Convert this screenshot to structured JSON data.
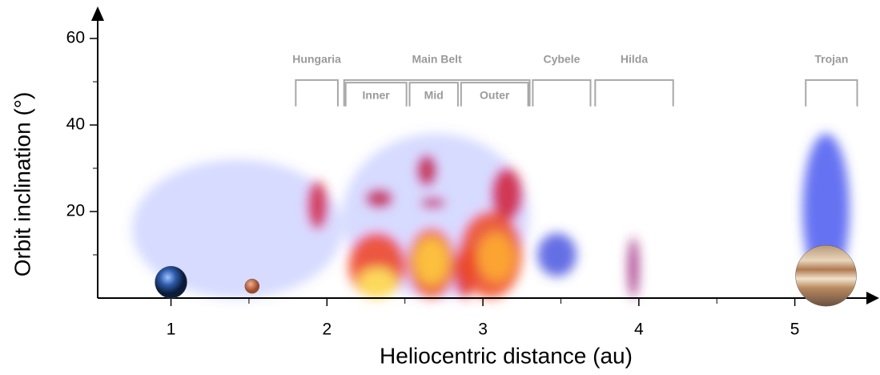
{
  "chart_data": {
    "type": "density",
    "x_label": "Heliocentric distance (au)",
    "y_label": "Orbit inclination (°)",
    "xlim": [
      0.53,
      5.5
    ],
    "ylim": [
      0,
      66
    ],
    "xticks": [
      1,
      2,
      3,
      4,
      5
    ],
    "xminor": [
      1.5,
      2.5,
      3.5,
      4.5
    ],
    "yticks": [
      20,
      40,
      60
    ],
    "yminor": [
      10,
      30,
      50
    ],
    "clusters": [
      {
        "x": [
          0.75,
          2.1
        ],
        "y": [
          0,
          32
        ],
        "color": "#5a6cff"
      },
      {
        "x": [
          2.1,
          3.3
        ],
        "y": [
          0,
          38
        ],
        "color": "#5a6cff"
      },
      {
        "x": [
          1.88,
          2.0
        ],
        "y": [
          16,
          27
        ],
        "color": "#d0203a"
      },
      {
        "x": [
          2.25,
          2.42
        ],
        "y": [
          21,
          25
        ],
        "color": "#c0203a"
      },
      {
        "x": [
          2.14,
          2.5
        ],
        "y": [
          0,
          15
        ],
        "color": "#f04020"
      },
      {
        "x": [
          2.2,
          2.45
        ],
        "y": [
          0,
          7
        ],
        "color": "#fff060"
      },
      {
        "x": [
          2.52,
          2.82
        ],
        "y": [
          0,
          16
        ],
        "color": "#f05020"
      },
      {
        "x": [
          2.56,
          2.78
        ],
        "y": [
          3,
          14
        ],
        "color": "#ffd040"
      },
      {
        "x": [
          2.58,
          2.7
        ],
        "y": [
          26,
          33
        ],
        "color": "#c01a3a"
      },
      {
        "x": [
          2.6,
          2.76
        ],
        "y": [
          21,
          23
        ],
        "color": "#c01a3a"
      },
      {
        "x": [
          2.82,
          2.95
        ],
        "y": [
          0,
          12
        ],
        "color": "#e02a2a"
      },
      {
        "x": [
          2.85,
          3.25
        ],
        "y": [
          0,
          20
        ],
        "color": "#f04a20"
      },
      {
        "x": [
          2.97,
          3.2
        ],
        "y": [
          4,
          15
        ],
        "color": "#ffb030"
      },
      {
        "x": [
          3.06,
          3.25
        ],
        "y": [
          18,
          30
        ],
        "color": "#d01a35"
      },
      {
        "x": [
          3.35,
          3.6
        ],
        "y": [
          5,
          15
        ],
        "color": "#4a55e0"
      },
      {
        "x": [
          3.93,
          4.0
        ],
        "y": [
          0,
          14
        ],
        "color": "#a02a80"
      },
      {
        "x": [
          5.05,
          5.35
        ],
        "y": [
          3,
          38
        ],
        "color": "#4a5af0"
      }
    ],
    "regions": [
      {
        "label": "Hungaria",
        "x": [
          1.8,
          2.07
        ],
        "y": [
          44.3,
          50.4
        ],
        "label_y": 55
      },
      {
        "label": "Main Belt",
        "x": [
          2.11,
          3.3
        ],
        "y": [
          44.3,
          50.4
        ],
        "label_y": 55
      },
      {
        "label": "Inner",
        "x": [
          2.12,
          2.51
        ],
        "y": [
          44.3,
          49.8
        ],
        "label_y": 46.7
      },
      {
        "label": "Mid",
        "x": [
          2.53,
          2.84
        ],
        "y": [
          44.3,
          49.8
        ],
        "label_y": 46.7
      },
      {
        "label": "Outer",
        "x": [
          2.86,
          3.29
        ],
        "y": [
          44.3,
          49.8
        ],
        "label_y": 46.7
      },
      {
        "label": "Cybele",
        "x": [
          3.32,
          3.69
        ],
        "y": [
          44.3,
          50.4
        ],
        "label_y": 55
      },
      {
        "label": "Hilda",
        "x": [
          3.72,
          4.22
        ],
        "y": [
          44.3,
          50.4
        ],
        "label_y": 55
      },
      {
        "label": "Trojan",
        "x": [
          5.07,
          5.4
        ],
        "y": [
          44.3,
          50.4
        ],
        "label_y": 55
      }
    ],
    "planets": [
      {
        "x": 1,
        "y": 2
      },
      {
        "x": 1.52,
        "y": 2
      },
      {
        "x": 5.2,
        "y": 2
      }
    ]
  }
}
